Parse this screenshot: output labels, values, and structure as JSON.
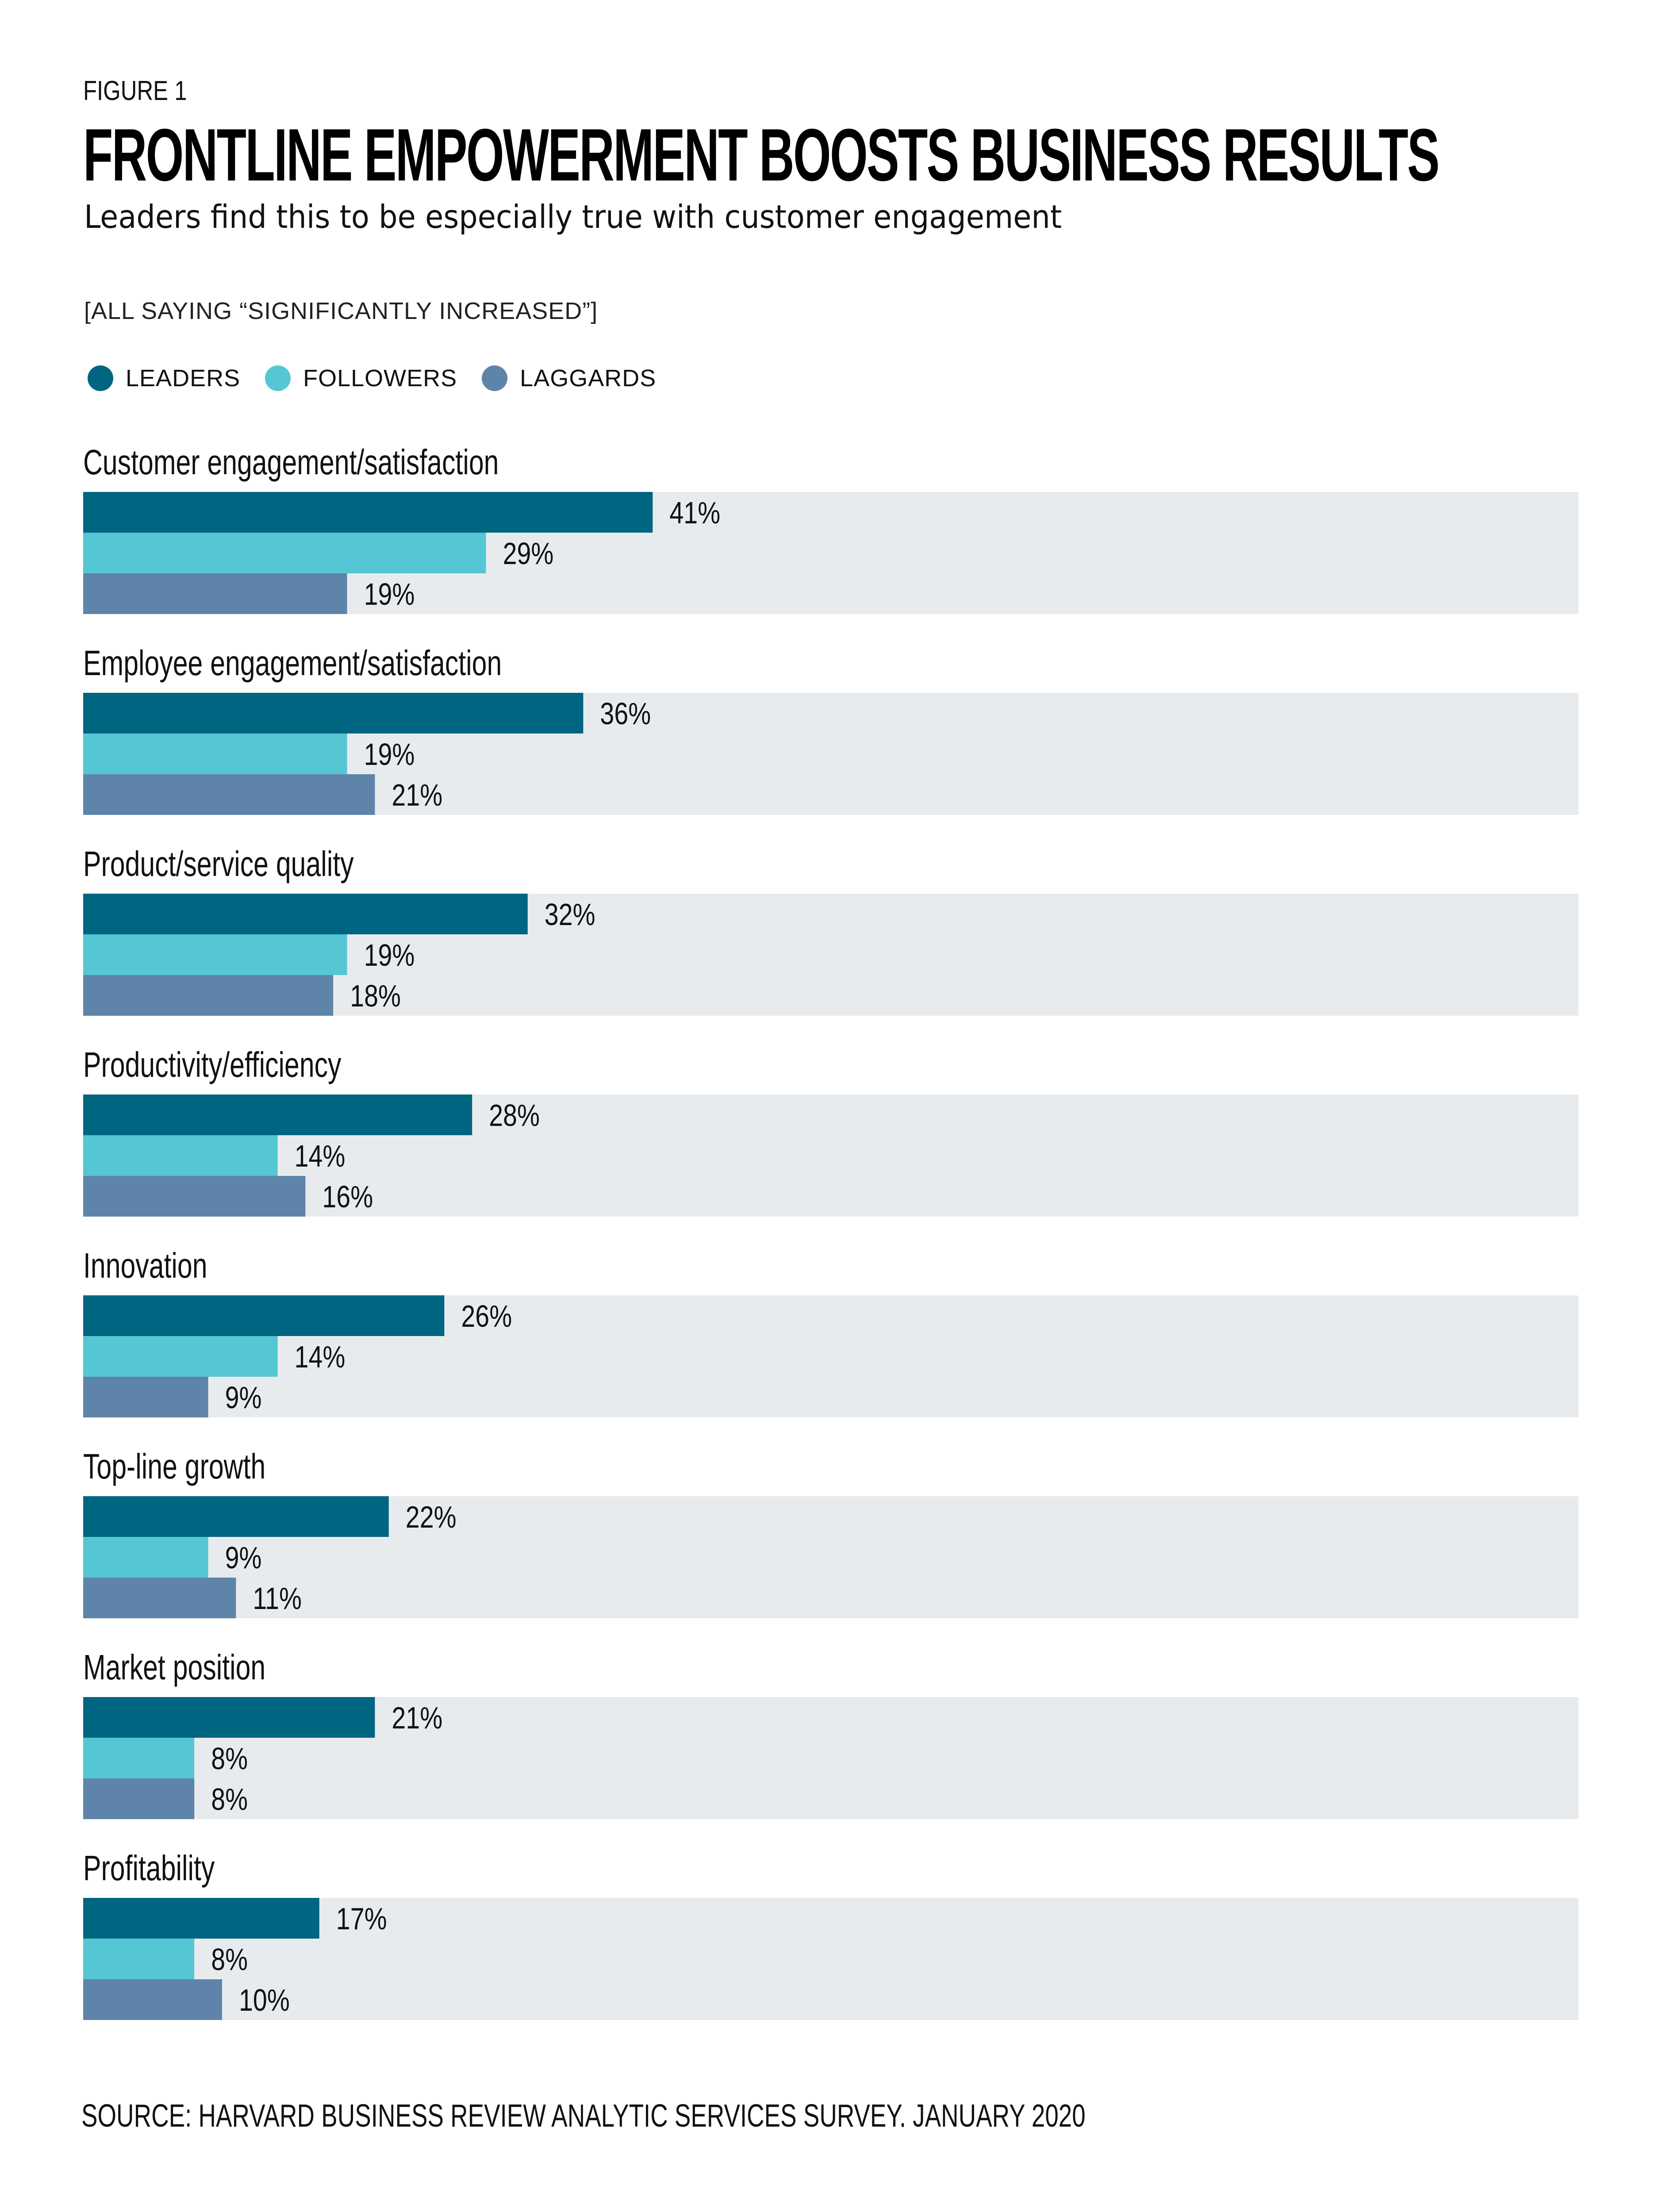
{
  "figure_label": "FIGURE 1",
  "chart_data": {
    "type": "bar",
    "orientation": "horizontal",
    "title": "FRONTLINE EMPOWERMENT BOOSTS BUSINESS RESULTS",
    "subtitle": "Leaders find this to be especially true with customer engagement",
    "note": "[ALL SAYING “SIGNIFICANTLY INCREASED”]",
    "value_suffix": "%",
    "xlim": [
      0,
      100
    ],
    "grid": false,
    "legend_placement": "top-left",
    "categories": [
      "Customer engagement/satisfaction",
      "Employee engagement/satisfaction",
      "Product/service quality",
      "Productivity/efficiency",
      "Innovation",
      "Top-line growth",
      "Market position",
      "Profitability"
    ],
    "series": [
      {
        "name": "LEADERS",
        "color": "#006580",
        "values": [
          41,
          36,
          32,
          28,
          26,
          22,
          21,
          17
        ]
      },
      {
        "name": "FOLLOWERS",
        "color": "#55C6D3",
        "values": [
          29,
          19,
          19,
          14,
          14,
          9,
          8,
          8
        ]
      },
      {
        "name": "LAGGARDS",
        "color": "#5F84A9",
        "values": [
          19,
          21,
          18,
          16,
          9,
          11,
          8,
          10
        ]
      }
    ],
    "track_color": "#E8EBEE"
  },
  "source": "SOURCE: HARVARD BUSINESS REVIEW ANALYTIC SERVICES SURVEY, JANUARY 2020"
}
